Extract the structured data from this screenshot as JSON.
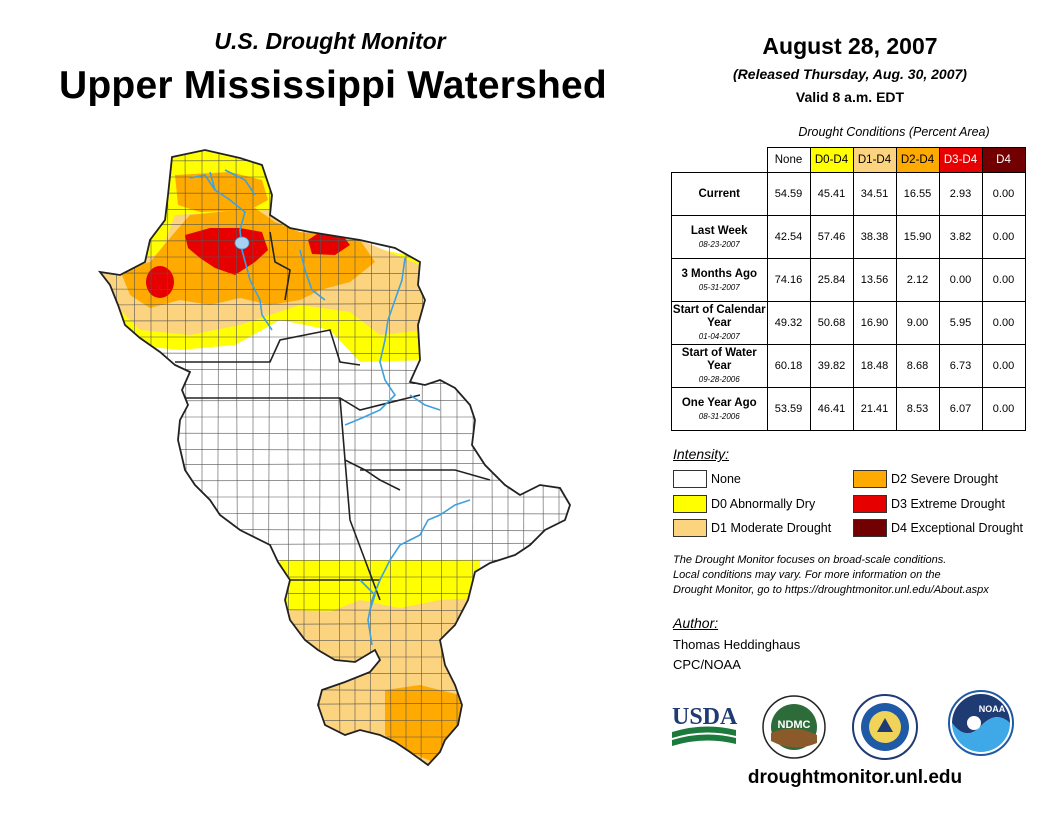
{
  "header": {
    "subtitle": "U.S. Drought Monitor",
    "title": "Upper Mississippi Watershed",
    "date": "August 28, 2007",
    "released": "(Released Thursday, Aug. 30, 2007)",
    "valid": "Valid 8 a.m. EDT"
  },
  "table": {
    "caption": "Drought Conditions (Percent Area)",
    "columns": [
      "None",
      "D0-D4",
      "D1-D4",
      "D2-D4",
      "D3-D4",
      "D4"
    ],
    "column_colors": [
      "#ffffff",
      "#ffff00",
      "#fcd37f",
      "#ffaa00",
      "#e60000",
      "#730000"
    ],
    "rows": [
      {
        "label": "Current",
        "date": "",
        "values": [
          "54.59",
          "45.41",
          "34.51",
          "16.55",
          "2.93",
          "0.00"
        ]
      },
      {
        "label": "Last Week",
        "date": "08-23-2007",
        "values": [
          "42.54",
          "57.46",
          "38.38",
          "15.90",
          "3.82",
          "0.00"
        ]
      },
      {
        "label": "3 Months Ago",
        "date": "05-31-2007",
        "values": [
          "74.16",
          "25.84",
          "13.56",
          "2.12",
          "0.00",
          "0.00"
        ]
      },
      {
        "label": "Start of Calendar Year",
        "date": "01-04-2007",
        "values": [
          "49.32",
          "50.68",
          "16.90",
          "9.00",
          "5.95",
          "0.00"
        ]
      },
      {
        "label": "Start of Water Year",
        "date": "09-28-2006",
        "values": [
          "60.18",
          "39.82",
          "18.48",
          "8.68",
          "6.73",
          "0.00"
        ]
      },
      {
        "label": "One Year Ago",
        "date": "08-31-2006",
        "values": [
          "53.59",
          "46.41",
          "21.41",
          "8.53",
          "6.07",
          "0.00"
        ]
      }
    ]
  },
  "legend": {
    "title": "Intensity:",
    "items": [
      {
        "label": "None",
        "color": "#ffffff"
      },
      {
        "label": "D0 Abnormally Dry",
        "color": "#ffff00"
      },
      {
        "label": "D1 Moderate Drought",
        "color": "#fcd37f"
      },
      {
        "label": "D2 Severe Drought",
        "color": "#ffaa00"
      },
      {
        "label": "D3 Extreme Drought",
        "color": "#e60000"
      },
      {
        "label": "D4 Exceptional Drought",
        "color": "#730000"
      }
    ]
  },
  "note": {
    "line1": "The Drought Monitor focuses on broad-scale conditions.",
    "line2": "Local conditions may vary. For more information on the",
    "line3": "Drought Monitor, go to https://droughtmonitor.unl.edu/About.aspx"
  },
  "author": {
    "title": "Author:",
    "name": "Thomas Heddinghaus",
    "org": "CPC/NOAA"
  },
  "logos": {
    "usda": "USDA",
    "ndmc": "NDMC",
    "noaa": "NOAA"
  },
  "footer": {
    "url": "droughtmonitor.unl.edu"
  },
  "colors": {
    "none": "#ffffff",
    "d0": "#ffff00",
    "d1": "#fcd37f",
    "d2": "#ffaa00",
    "d3": "#e60000",
    "d4": "#730000",
    "river": "#3fa0e0"
  }
}
